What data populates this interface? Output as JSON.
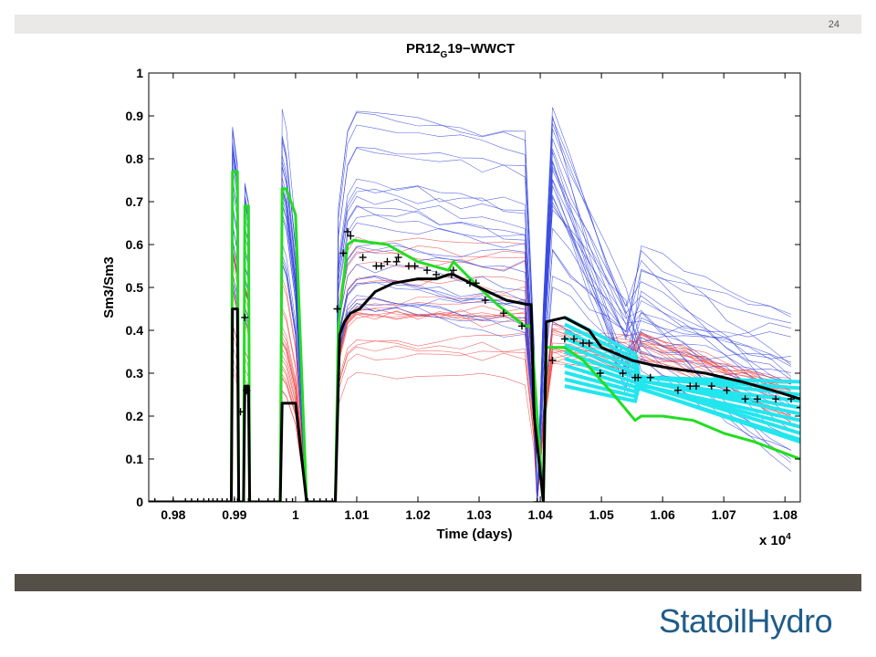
{
  "page": {
    "number": "24",
    "logo_text": "StatoilHydro"
  },
  "colors": {
    "ensemble_blue": "#3344dd",
    "ensemble_red": "#ee4444",
    "green": "#22dd22",
    "black": "#000000",
    "cyan": "#22e6ee",
    "bottom_band": "#555047",
    "logo": "#1f5c8a"
  },
  "chart_data": {
    "type": "line",
    "title_main": "PR12",
    "title_sub": "G",
    "title_rest": "19−WWCT",
    "xlabel": "Time (days)",
    "ylabel": "Sm3/Sm3",
    "x_multiplier": "x 10",
    "x_multiplier_exp": "4",
    "xlim": [
      0.976,
      1.0825
    ],
    "ylim": [
      0,
      1
    ],
    "xticks": [
      0.98,
      0.99,
      1.0,
      1.01,
      1.02,
      1.03,
      1.04,
      1.05,
      1.06,
      1.07,
      1.08
    ],
    "xtick_labels": [
      "0.98",
      "0.99",
      "1",
      "1.01",
      "1.02",
      "1.03",
      "1.04",
      "1.05",
      "1.06",
      "1.07",
      "1.08"
    ],
    "yticks": [
      0,
      0.1,
      0.2,
      0.3,
      0.4,
      0.5,
      0.6,
      0.7,
      0.8,
      0.9,
      1
    ],
    "ytick_labels": [
      "0",
      "0.1",
      "0.2",
      "0.3",
      "0.4",
      "0.5",
      "0.6",
      "0.7",
      "0.8",
      "0.9",
      "1"
    ],
    "series": [
      {
        "role": "green",
        "x": [
          0.976,
          0.9895,
          0.9897,
          0.9905,
          0.9907,
          0.9915,
          0.9917,
          0.9923,
          0.9925,
          0.9975,
          0.9978,
          0.9985,
          1.0,
          1.0018,
          1.0065,
          1.007,
          1.0085,
          1.0095,
          1.015,
          1.02,
          1.025,
          1.0258,
          1.03,
          1.033,
          1.0375,
          1.038,
          1.0385,
          1.0395,
          1.0405,
          1.041,
          1.044,
          1.047,
          1.052,
          1.0555,
          1.0565,
          1.06,
          1.065,
          1.07,
          1.075,
          1.0825
        ],
        "y": [
          0,
          0,
          0.77,
          0.77,
          0,
          0,
          0.69,
          0.69,
          0,
          0,
          0.73,
          0.73,
          0.67,
          0,
          0,
          0.41,
          0.6,
          0.61,
          0.6,
          0.56,
          0.54,
          0.56,
          0.5,
          0.46,
          0.41,
          0.41,
          0.41,
          0.2,
          0,
          0.36,
          0.36,
          0.33,
          0.25,
          0.19,
          0.2,
          0.2,
          0.19,
          0.16,
          0.14,
          0.1
        ]
      },
      {
        "role": "black",
        "x": [
          0.976,
          0.9895,
          0.9897,
          0.9905,
          0.9907,
          0.9915,
          0.9917,
          0.9923,
          0.9925,
          0.9975,
          0.9978,
          0.9985,
          1.0,
          1.0018,
          1.0065,
          1.0072,
          1.008,
          1.009,
          1.0105,
          1.013,
          1.016,
          1.02,
          1.023,
          1.025,
          1.0258,
          1.03,
          1.0345,
          1.038,
          1.0385,
          1.039,
          1.0405,
          1.041,
          1.044,
          1.048,
          1.05,
          1.055,
          1.058,
          1.062,
          1.067,
          1.073,
          1.078,
          1.0825
        ],
        "y": [
          0,
          0,
          0.45,
          0.45,
          0,
          0,
          0.27,
          0.27,
          0,
          0,
          0.23,
          0.23,
          0.23,
          0,
          0,
          0.39,
          0.42,
          0.44,
          0.45,
          0.49,
          0.51,
          0.52,
          0.52,
          0.53,
          0.53,
          0.5,
          0.47,
          0.46,
          0.46,
          0.2,
          0,
          0.42,
          0.43,
          0.4,
          0.36,
          0.33,
          0.32,
          0.31,
          0.3,
          0.28,
          0.26,
          0.24
        ]
      }
    ],
    "observations": {
      "x": [
        0.977,
        0.98,
        0.982,
        0.983,
        0.984,
        0.985,
        0.9858,
        0.9865,
        0.9872,
        0.988,
        0.9888,
        0.99,
        0.9905,
        0.991,
        0.9917,
        0.992,
        0.9923,
        0.994,
        0.9955,
        0.9965,
        0.9975,
        0.9985,
        0.9995,
        1.002,
        1.003,
        1.004,
        1.005,
        1.006,
        1.0068,
        1.0078,
        1.0085,
        1.009,
        1.011,
        1.0132,
        1.014,
        1.015,
        1.0165,
        1.0168,
        1.0185,
        1.0195,
        1.0215,
        1.023,
        1.0255,
        1.0258,
        1.0285,
        1.0295,
        1.031,
        1.034,
        1.037,
        1.0395,
        1.042,
        1.044,
        1.0455,
        1.047,
        1.048,
        1.0498,
        1.0535,
        1.0555,
        1.056,
        1.058,
        1.0625,
        1.0645,
        1.0655,
        1.068,
        1.0705,
        1.0735,
        1.0755,
        1.0785,
        1.081,
        1.0825
      ],
      "y": [
        0,
        0,
        0,
        0,
        0,
        0,
        0,
        0,
        0,
        0,
        0,
        0,
        0,
        0.21,
        0.43,
        0.26,
        0,
        0,
        0,
        0,
        0,
        0,
        0,
        0,
        0,
        0,
        0,
        0,
        0.45,
        0.58,
        0.63,
        0.62,
        0.57,
        0.55,
        0.55,
        0.56,
        0.56,
        0.57,
        0.55,
        0.55,
        0.54,
        0.53,
        0.53,
        0.54,
        0.51,
        0.51,
        0.47,
        0.44,
        0.41,
        0,
        0.33,
        0.38,
        0.38,
        0.37,
        0.37,
        0.3,
        0.3,
        0.29,
        0.29,
        0.29,
        0.26,
        0.27,
        0.27,
        0.27,
        0.26,
        0.24,
        0.24,
        0.24,
        0.24,
        0.22
      ]
    }
  }
}
